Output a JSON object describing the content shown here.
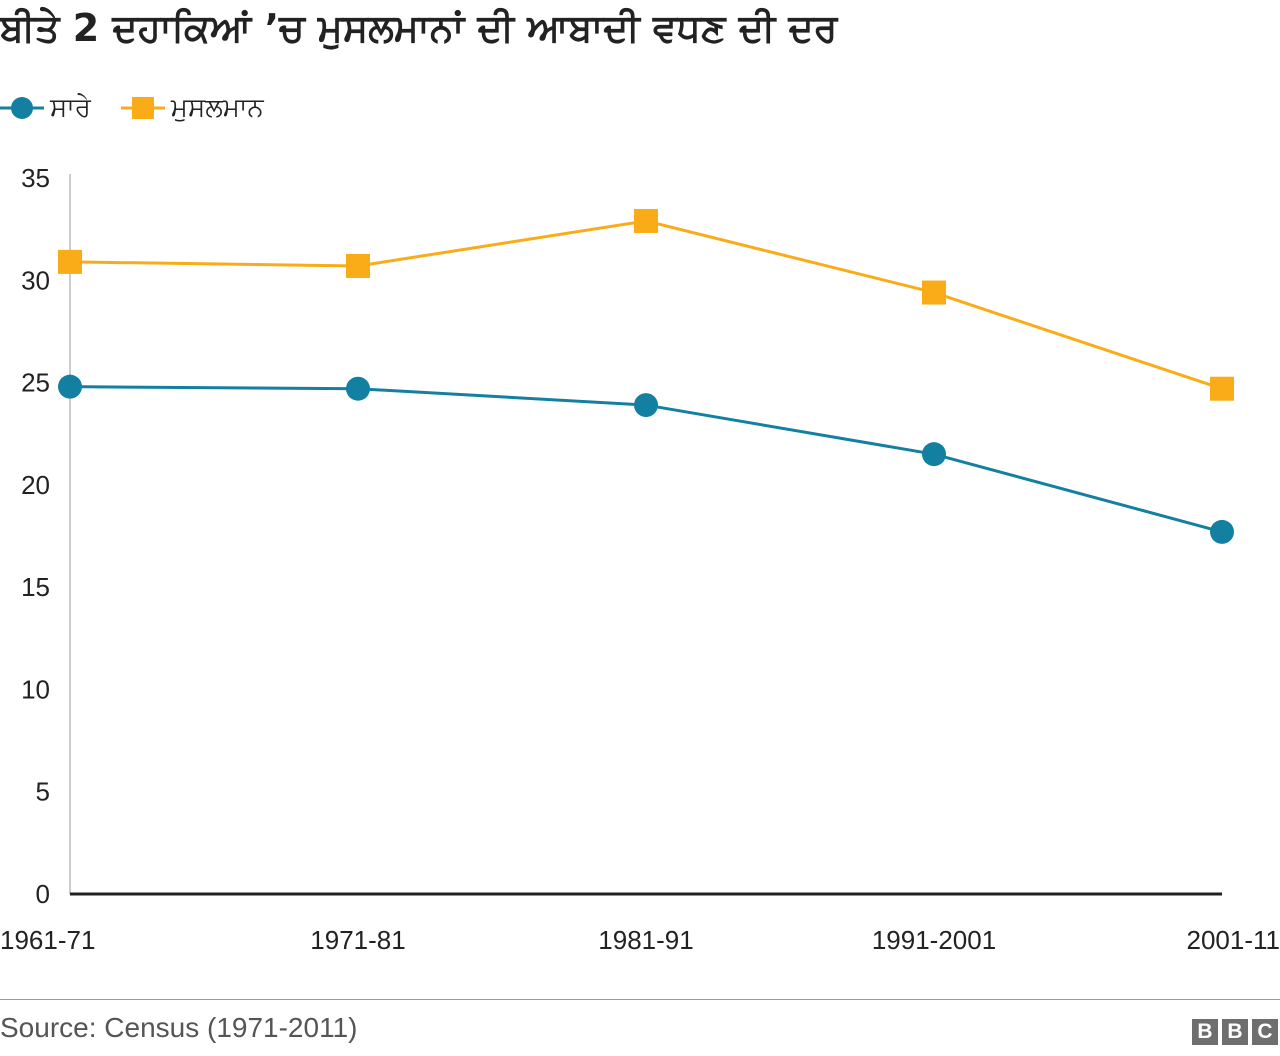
{
  "chart_data": {
    "type": "line",
    "title": "ਬੀਤੇ 2 ਦਹਾਕਿਆਂ ’ਚ ਮੁਸਲਮਾਨਾਂ ਦੀ ਆਬਾਦੀ ਵਧਣ ਦੀ ਦਰ",
    "categories": [
      "1961-71",
      "1971-81",
      "1981-91",
      "1991-2001",
      "2001-11"
    ],
    "y_ticks": [
      "0",
      "5",
      "10",
      "15",
      "20",
      "25",
      "30",
      "35"
    ],
    "ylim": [
      0,
      35
    ],
    "grid": false,
    "legend_position": "top-left",
    "series": [
      {
        "name": "ਸਾਰੇ",
        "marker": "circle",
        "color": "#1380A1",
        "values": [
          24.8,
          24.7,
          23.9,
          21.5,
          17.7
        ]
      },
      {
        "name": "ਮੁਸਲਮਾਨ",
        "marker": "square",
        "color": "#FAAB18",
        "values": [
          30.9,
          30.7,
          32.9,
          29.4,
          24.7
        ]
      }
    ]
  },
  "footer": {
    "source": "Source: Census (1971-2011)",
    "logo_letters": [
      "B",
      "B",
      "C"
    ]
  }
}
